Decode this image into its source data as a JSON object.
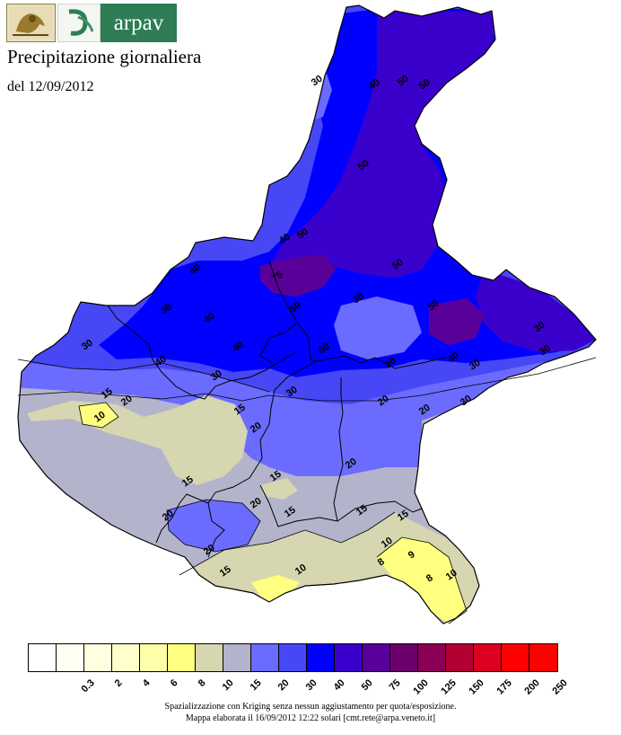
{
  "header": {
    "logo_text": "arpav",
    "title": "Precipitazione giornaliera",
    "date": "del 12/09/2012"
  },
  "map": {
    "contour_labels": [
      {
        "text": "30"
      },
      {
        "text": "40"
      },
      {
        "text": "50"
      },
      {
        "text": "50"
      },
      {
        "text": "50"
      },
      {
        "text": "40"
      },
      {
        "text": "50"
      },
      {
        "text": "50"
      },
      {
        "text": "75"
      },
      {
        "text": "40"
      },
      {
        "text": "30"
      },
      {
        "text": "40"
      },
      {
        "text": "30"
      },
      {
        "text": "30"
      },
      {
        "text": "40"
      },
      {
        "text": "40"
      },
      {
        "text": "50"
      },
      {
        "text": "50"
      },
      {
        "text": "30"
      },
      {
        "text": "30"
      },
      {
        "text": "50"
      },
      {
        "text": "40"
      },
      {
        "text": "30"
      },
      {
        "text": "20"
      },
      {
        "text": "30"
      },
      {
        "text": "30"
      },
      {
        "text": "20"
      },
      {
        "text": "15"
      },
      {
        "text": "20"
      },
      {
        "text": "10"
      },
      {
        "text": "15"
      },
      {
        "text": "20"
      },
      {
        "text": "15"
      },
      {
        "text": "20"
      },
      {
        "text": "15"
      },
      {
        "text": "20"
      },
      {
        "text": "20"
      },
      {
        "text": "15"
      },
      {
        "text": "15"
      },
      {
        "text": "15"
      },
      {
        "text": "20"
      },
      {
        "text": "15"
      },
      {
        "text": "10"
      },
      {
        "text": "10"
      },
      {
        "text": "8"
      },
      {
        "text": "9"
      },
      {
        "text": "8"
      },
      {
        "text": "10"
      },
      {
        "text": "20"
      },
      {
        "text": "30"
      }
    ]
  },
  "legend": {
    "classes": [
      {
        "color": "#ffffff",
        "label": "0.3"
      },
      {
        "color": "#fffff2",
        "label": "2"
      },
      {
        "color": "#ffffe0",
        "label": "4"
      },
      {
        "color": "#ffffcc",
        "label": "6"
      },
      {
        "color": "#ffffaa",
        "label": "8"
      },
      {
        "color": "#ffff80",
        "label": "10"
      },
      {
        "color": "#d6d6b0",
        "label": "15"
      },
      {
        "color": "#b3b3cc",
        "label": "20"
      },
      {
        "color": "#6b6bff",
        "label": "30"
      },
      {
        "color": "#4747f5",
        "label": "40"
      },
      {
        "color": "#0000ff",
        "label": "50"
      },
      {
        "color": "#3a00cc",
        "label": "75"
      },
      {
        "color": "#5a009a",
        "label": "100"
      },
      {
        "color": "#6b006b",
        "label": "125"
      },
      {
        "color": "#8a0055",
        "label": "150"
      },
      {
        "color": "#b30033",
        "label": "175"
      },
      {
        "color": "#dd0020",
        "label": "200"
      },
      {
        "color": "#ff0000",
        "label": "250"
      }
    ],
    "end_color": "#ff0000"
  },
  "footer": {
    "line1": "Spazializzazione con Kriging senza nessun aggiustamento per quota/esposizione.",
    "line2": "Mappa elaborata il 16/09/2012 12:22 solari [cmt.rete@arpa.veneto.it]"
  }
}
